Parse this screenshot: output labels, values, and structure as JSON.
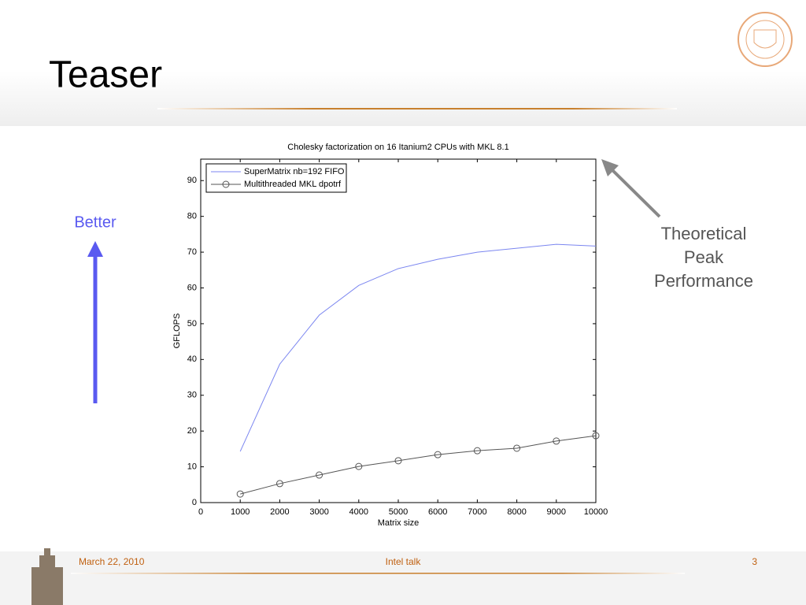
{
  "slide": {
    "title": "Teaser",
    "better": "Better",
    "annotation": [
      "Theoretical",
      "Peak",
      "Performance"
    ],
    "footer": {
      "date": "March 22, 2010",
      "center": "Intel talk",
      "page": "3"
    }
  },
  "chart_data": {
    "type": "line",
    "title": "Cholesky factorization on 16 Itanium2 CPUs with MKL 8.1",
    "x_label": "Matrix size",
    "y_label": "GFLOPS",
    "x": [
      1000,
      2000,
      3000,
      4000,
      5000,
      6000,
      7000,
      8000,
      9000,
      10000
    ],
    "series": [
      {
        "name": "SuperMatrix nb=192 FIFO",
        "color": "#7b86f0",
        "marker": "none",
        "values": [
          14.3,
          38.7,
          52.4,
          60.7,
          65.4,
          68.0,
          70.0,
          71.1,
          72.2,
          71.7
        ]
      },
      {
        "name": "Multithreaded MKL dpotrf",
        "color": "#555555",
        "marker": "circle",
        "values": [
          2.4,
          5.3,
          7.7,
          10.1,
          11.7,
          13.4,
          14.5,
          15.2,
          17.2,
          18.7
        ]
      }
    ],
    "xlim": [
      0,
      10000
    ],
    "xticks": [
      0,
      1000,
      2000,
      3000,
      4000,
      5000,
      6000,
      7000,
      8000,
      9000,
      10000
    ],
    "ylim": [
      0,
      96
    ],
    "yticks": [
      0,
      10,
      20,
      30,
      40,
      50,
      60,
      70,
      80,
      90
    ],
    "legend": "upper left",
    "grid": false
  }
}
